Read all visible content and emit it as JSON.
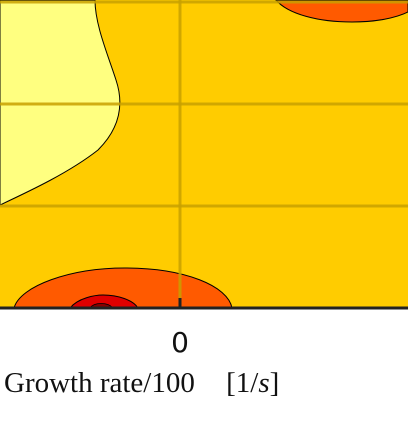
{
  "chart_data": {
    "type": "heatmap",
    "title": "",
    "xlabel": "Growth rate/100",
    "xunit_open": "[1/",
    "xunit_var": "s",
    "xunit_close": "]",
    "x_ticks": [
      "0"
    ],
    "x_ticks_values": [
      0
    ],
    "grid": true,
    "legend": "none",
    "colors": {
      "lightest": "#ffff80",
      "light": "#ffcc00",
      "mid": "#ff5a00",
      "strong": "#e00000",
      "darkest": "#8a0000",
      "grid": "#c8a000",
      "axis": "#222222"
    }
  }
}
